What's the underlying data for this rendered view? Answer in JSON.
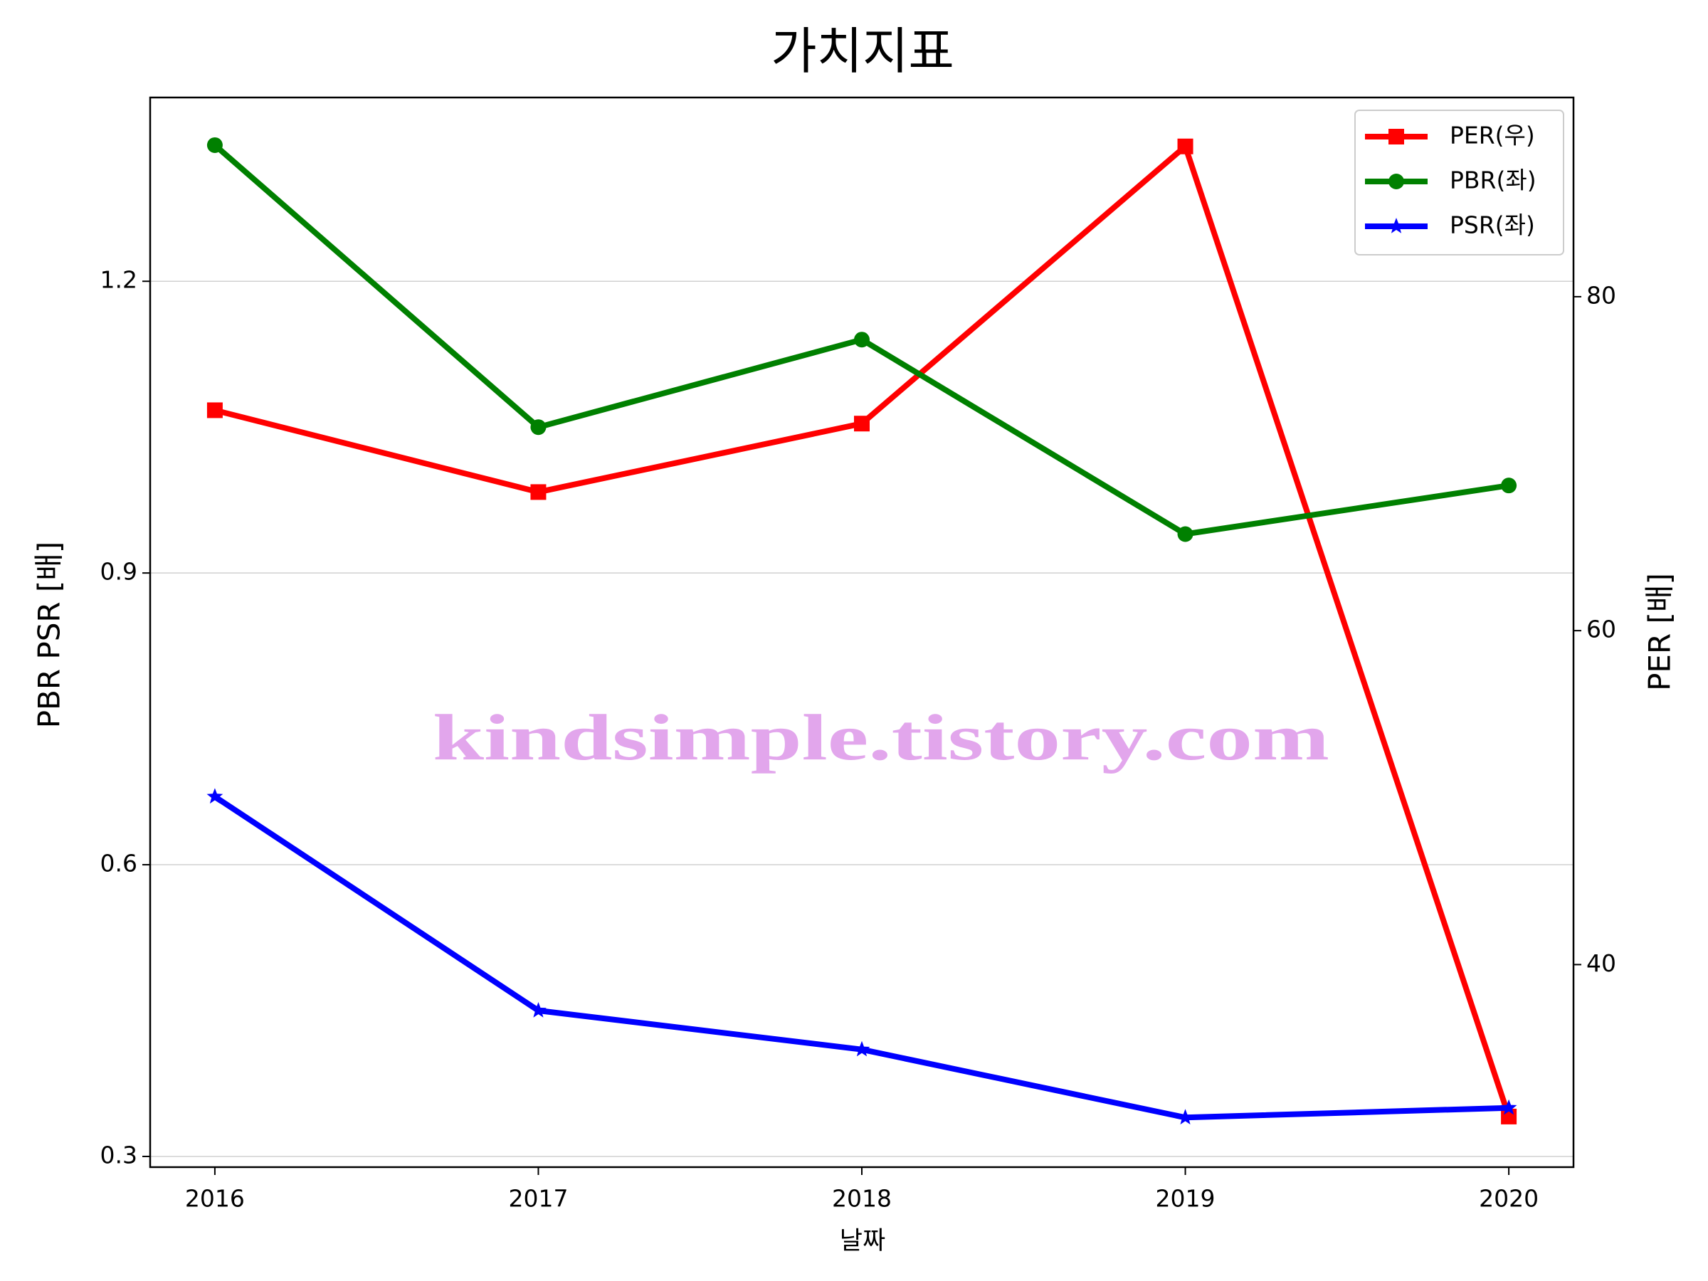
{
  "chart_data": {
    "type": "line",
    "title": "가치지표",
    "xlabel": "날짜",
    "ylabel": "PBR PSR [배]",
    "ylabel_color": "#008000",
    "y2label": "PER [배]",
    "y2label_color": "#ff0000",
    "annotation": "kindsimple.tistory.com",
    "x": [
      2016,
      2017,
      2018,
      2019,
      2020
    ],
    "xlim": [
      2015.8,
      2020.2
    ],
    "xticks": [
      2016,
      2017,
      2018,
      2019,
      2020
    ],
    "ylim": [
      0.289,
      1.389
    ],
    "yticks": [
      0.3,
      0.6,
      0.9,
      1.2
    ],
    "y2lim": [
      27.87,
      91.93
    ],
    "y2ticks": [
      40,
      60,
      80
    ],
    "grid": true,
    "legend": "upper right",
    "series": [
      {
        "name": "PER(우)",
        "color": "#ff0000",
        "marker": "square",
        "axis": "y2",
        "values": [
          73.2,
          68.3,
          72.4,
          89.0,
          30.9
        ]
      },
      {
        "name": "PBR(좌)",
        "color": "#008000",
        "marker": "circle",
        "axis": "y",
        "values": [
          1.34,
          1.05,
          1.14,
          0.94,
          0.99
        ]
      },
      {
        "name": "PSR(좌)",
        "color": "#0000ff",
        "marker": "star",
        "axis": "y",
        "values": [
          0.67,
          0.45,
          0.41,
          0.34,
          0.35
        ]
      }
    ]
  }
}
